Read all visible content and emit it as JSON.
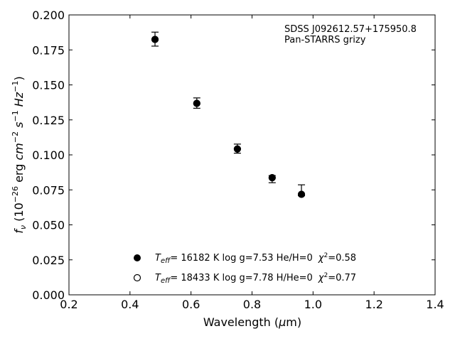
{
  "chart_data": {
    "type": "scatter",
    "annotation": [
      "SDSS J092612.57+175950.8",
      "Pan-STARRS grizy"
    ],
    "xlabel": {
      "prefix": "Wavelength (",
      "symbol": "μ",
      "suffix": "m)"
    },
    "ylabel": {
      "f": "f",
      "nu": "ν",
      "open": " (10",
      "exp26": "−26",
      "erg": " erg ",
      "cm": "cm",
      "exp2": "−2",
      "s": " s",
      "exp1": "−1",
      "hz": " Hz",
      "exp1b": "−1",
      "close": ")"
    },
    "xlim": [
      0.2,
      1.4
    ],
    "ylim": [
      0.0,
      0.2
    ],
    "xticks": [
      "0.2",
      "0.4",
      "0.6",
      "0.8",
      "1.0",
      "1.2",
      "1.4"
    ],
    "yticks": [
      "0.000",
      "0.025",
      "0.050",
      "0.075",
      "0.100",
      "0.125",
      "0.150",
      "0.175",
      "0.200"
    ],
    "series": [
      {
        "marker": "filled",
        "x": [
          0.482,
          0.619,
          0.752,
          0.866,
          0.962
        ],
        "y": [
          0.1825,
          0.1368,
          0.1042,
          0.0837,
          0.0718
        ],
        "err_up": [
          0.0052,
          0.0039,
          0.0035,
          0.0015,
          0.0068
        ],
        "err_down": [
          0.0048,
          0.0035,
          0.003,
          0.0036,
          0.001
        ]
      },
      {
        "marker": "open",
        "x": [
          0.482,
          0.619,
          0.752,
          0.866,
          0.962
        ],
        "y": [
          0.1825,
          0.1368,
          0.1042,
          0.0837,
          0.0718
        ]
      }
    ],
    "legend": {
      "placement": "lower-center",
      "entries": [
        {
          "marker": "filled",
          "teff": "= 16182 K",
          "logg": "  log g=7.53",
          "comp": "  He/H=0",
          "chi": "=0.58"
        },
        {
          "marker": "open",
          "teff": "= 18433 K",
          "logg": "  log g=7.78",
          "comp": "  H/He=0",
          "chi": "=0.77"
        }
      ],
      "T": "T",
      "eff": "eff",
      "chi_symbol": "χ",
      "chi_exp": "2"
    },
    "grid": false
  }
}
